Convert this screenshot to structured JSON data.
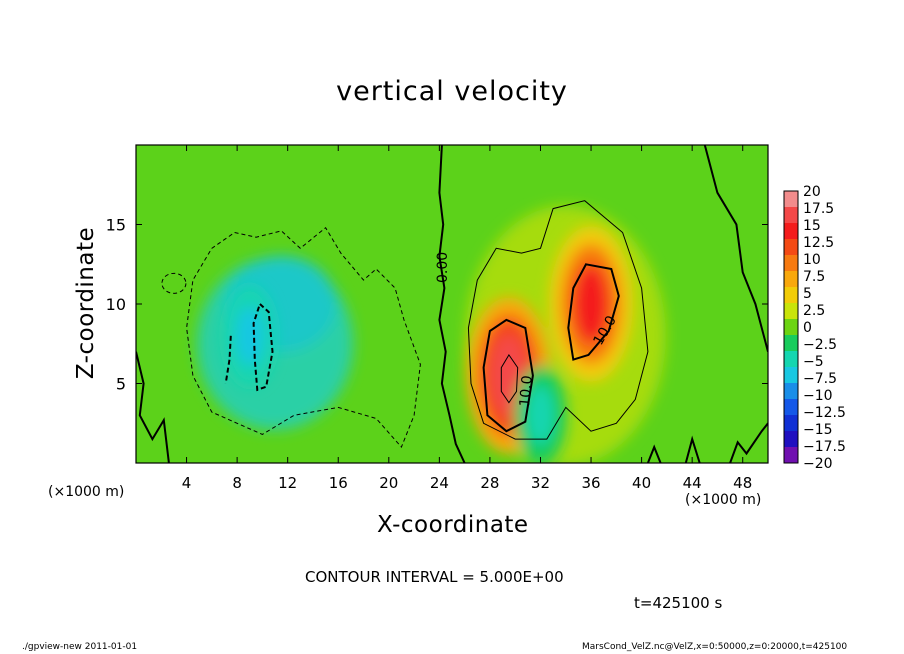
{
  "chart_data": {
    "type": "heatmap",
    "title": "vertical velocity",
    "xlabel": "X-coordinate",
    "ylabel": "Z-coordinate",
    "x_unit": "(×1000 m)",
    "y_unit": "(×1000 m)",
    "xlim": [
      0,
      50
    ],
    "ylim": [
      0,
      20
    ],
    "x_ticks": [
      4,
      8,
      12,
      16,
      20,
      24,
      28,
      32,
      36,
      40,
      44,
      48
    ],
    "y_ticks": [
      5,
      10,
      15
    ],
    "colorbar": {
      "levels": [
        20,
        17.5,
        15,
        12.5,
        10,
        7.5,
        5,
        2.5,
        0,
        -2.5,
        -5,
        -7.5,
        -10,
        -12.5,
        -15,
        -17.5,
        -20
      ],
      "labels": [
        "20",
        "17.5",
        "15",
        "12.5",
        "10",
        "7.5",
        "5",
        "2.5",
        "0",
        "−2.5",
        "−5",
        "−7.5",
        "−10",
        "−12.5",
        "−15",
        "−17.5",
        "−20"
      ],
      "colors": [
        "#f28c8c",
        "#f44848",
        "#f41c1c",
        "#f44a14",
        "#f77a10",
        "#f9a80c",
        "#f2cc08",
        "#c9e40a",
        "#6cd412",
        "#18cc5c",
        "#14d6b0",
        "#18c8e2",
        "#1a8ee8",
        "#1458e8",
        "#1030d4",
        "#2010c0",
        "#7010b0"
      ]
    },
    "contour_labels": [
      "0.00",
      "10.0",
      "10.0"
    ],
    "contour_interval": "CONTOUR INTERVAL = 5.000E+00",
    "features": [
      {
        "sign": "positive",
        "x": 29.5,
        "z": 5.5,
        "peak": 17
      },
      {
        "sign": "positive",
        "x": 36.0,
        "z": 10.0,
        "peak": 14
      },
      {
        "sign": "negative",
        "x": 9.0,
        "z": 8.0,
        "peak": -9
      },
      {
        "sign": "negative",
        "x": 32.0,
        "z": 3.0,
        "peak": -5
      }
    ]
  },
  "annotations": {
    "time": "t=425100 s",
    "footer_left": "./gpview-new   2011-01-01",
    "footer_right": "MarsCond_VelZ.nc@VelZ,x=0:50000,z=0:20000,t=425100"
  }
}
